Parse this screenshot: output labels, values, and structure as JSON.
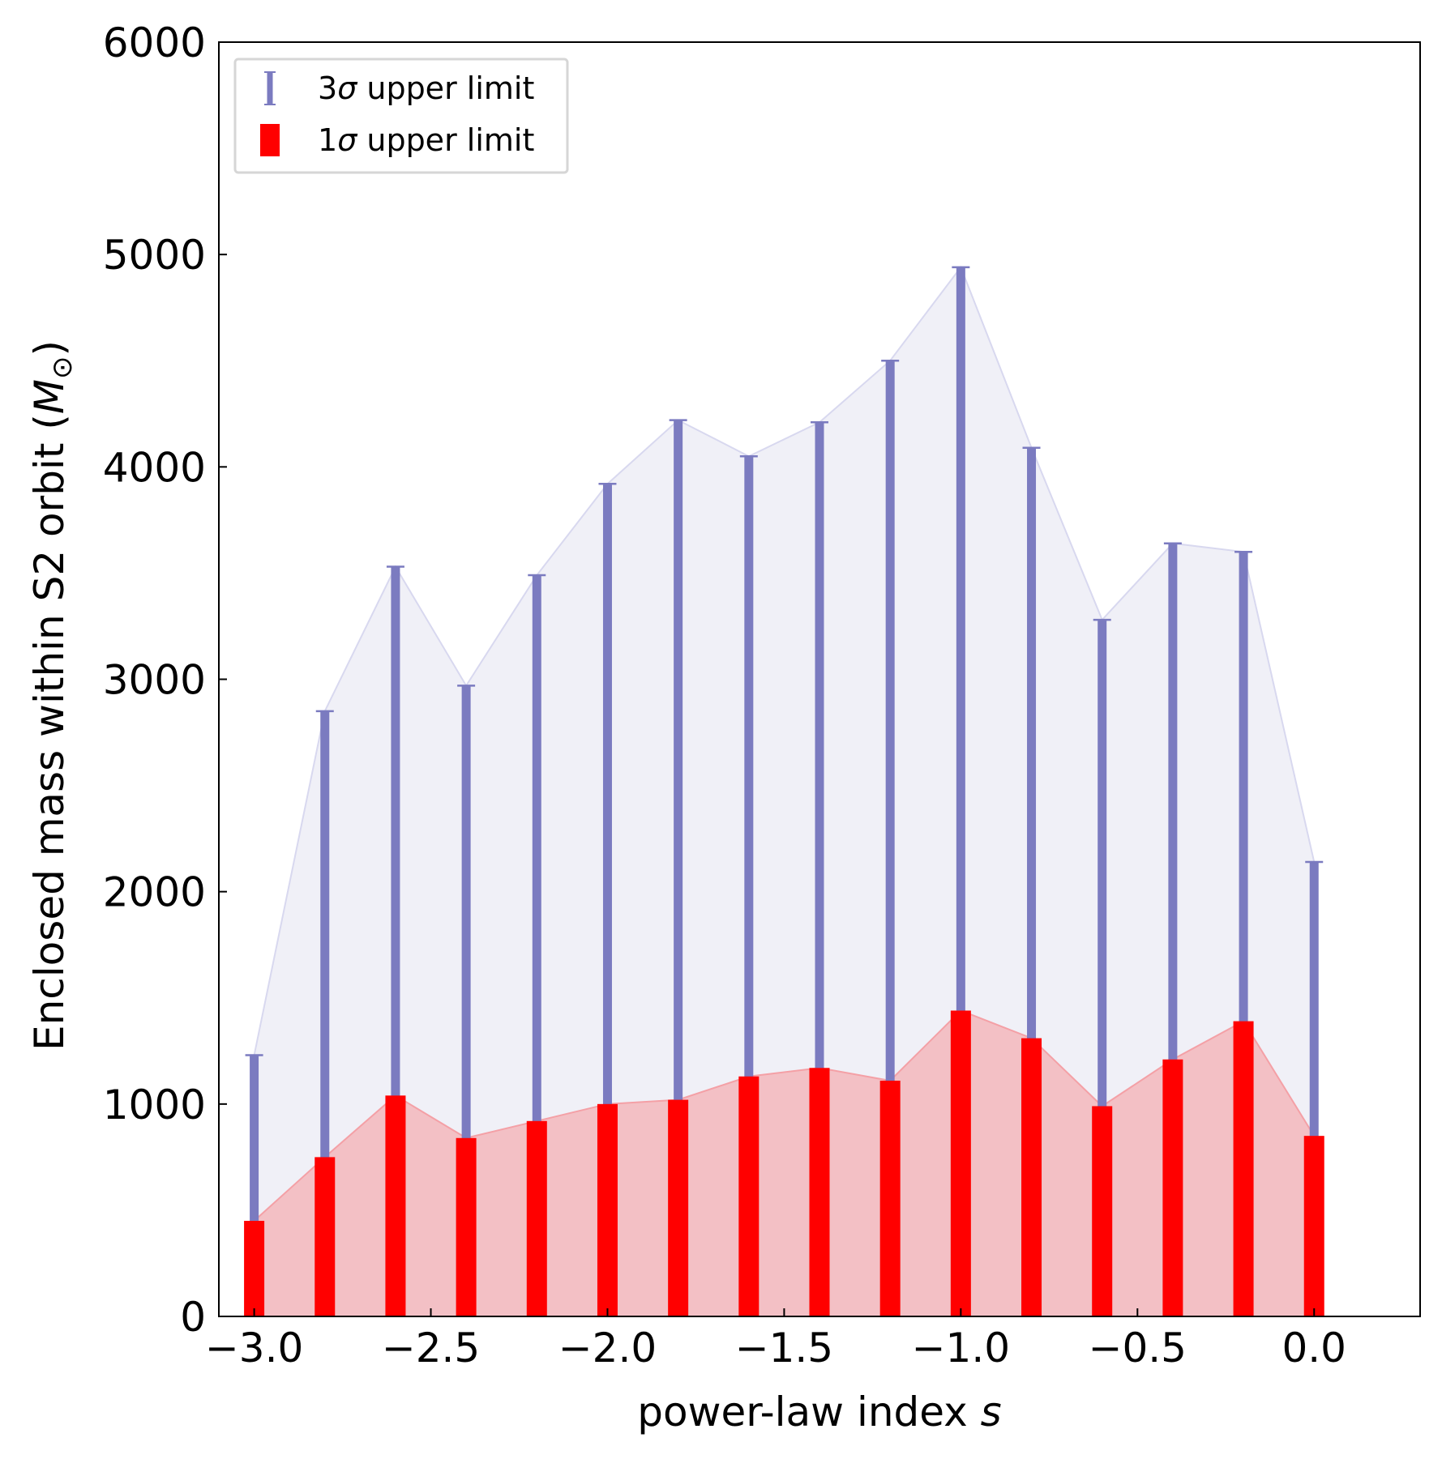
{
  "chart_data": {
    "type": "bar",
    "xlabel": "power-law index",
    "xlabel_symbol": "s",
    "ylabel": "Enclosed mass within S2 orbit (",
    "ylabel_symbol": "M",
    "ylabel_sub": "⊙",
    "ylabel_close": ")",
    "xlim": [
      -3.1,
      0.3
    ],
    "ylim": [
      0,
      6000
    ],
    "x_ticks": [
      -3.0,
      -2.5,
      -2.0,
      -1.5,
      -1.0,
      -0.5,
      0.0
    ],
    "x_tick_labels": [
      "−3.0",
      "−2.5",
      "−2.0",
      "−1.5",
      "−1.0",
      "−0.5",
      "0.0"
    ],
    "y_ticks": [
      0,
      1000,
      2000,
      3000,
      4000,
      5000,
      6000
    ],
    "y_tick_labels": [
      "0",
      "1000",
      "2000",
      "3000",
      "4000",
      "5000",
      "6000"
    ],
    "legend": {
      "placement": "top-left",
      "entries": [
        {
          "prefix": "3",
          "symbol": "σ",
          "text": " upper limit",
          "color": "#7b7bc0",
          "kind": "errorbar"
        },
        {
          "prefix": "1",
          "symbol": "σ",
          "text": " upper limit",
          "color": "#ff0000",
          "kind": "bar"
        }
      ]
    },
    "x": [
      -3.0,
      -2.8,
      -2.6,
      -2.4,
      -2.2,
      -2.0,
      -1.8,
      -1.6,
      -1.4,
      -1.2,
      -1.0,
      -0.8,
      -0.6,
      -0.4,
      -0.2,
      0.0
    ],
    "series": [
      {
        "name": "3σ upper limit",
        "color": "#7b7bc0",
        "fill": "#f0f0f7",
        "values": [
          1230,
          2850,
          3530,
          2970,
          3490,
          3920,
          4220,
          4050,
          4210,
          4500,
          4940,
          4090,
          3280,
          3640,
          3600,
          2140
        ]
      },
      {
        "name": "1σ upper limit",
        "color": "#ff0000",
        "fill": "#f3c0c5",
        "values": [
          450,
          750,
          1040,
          840,
          920,
          1000,
          1020,
          1130,
          1170,
          1110,
          1440,
          1310,
          990,
          1210,
          1390,
          850
        ]
      }
    ],
    "grid": false
  }
}
